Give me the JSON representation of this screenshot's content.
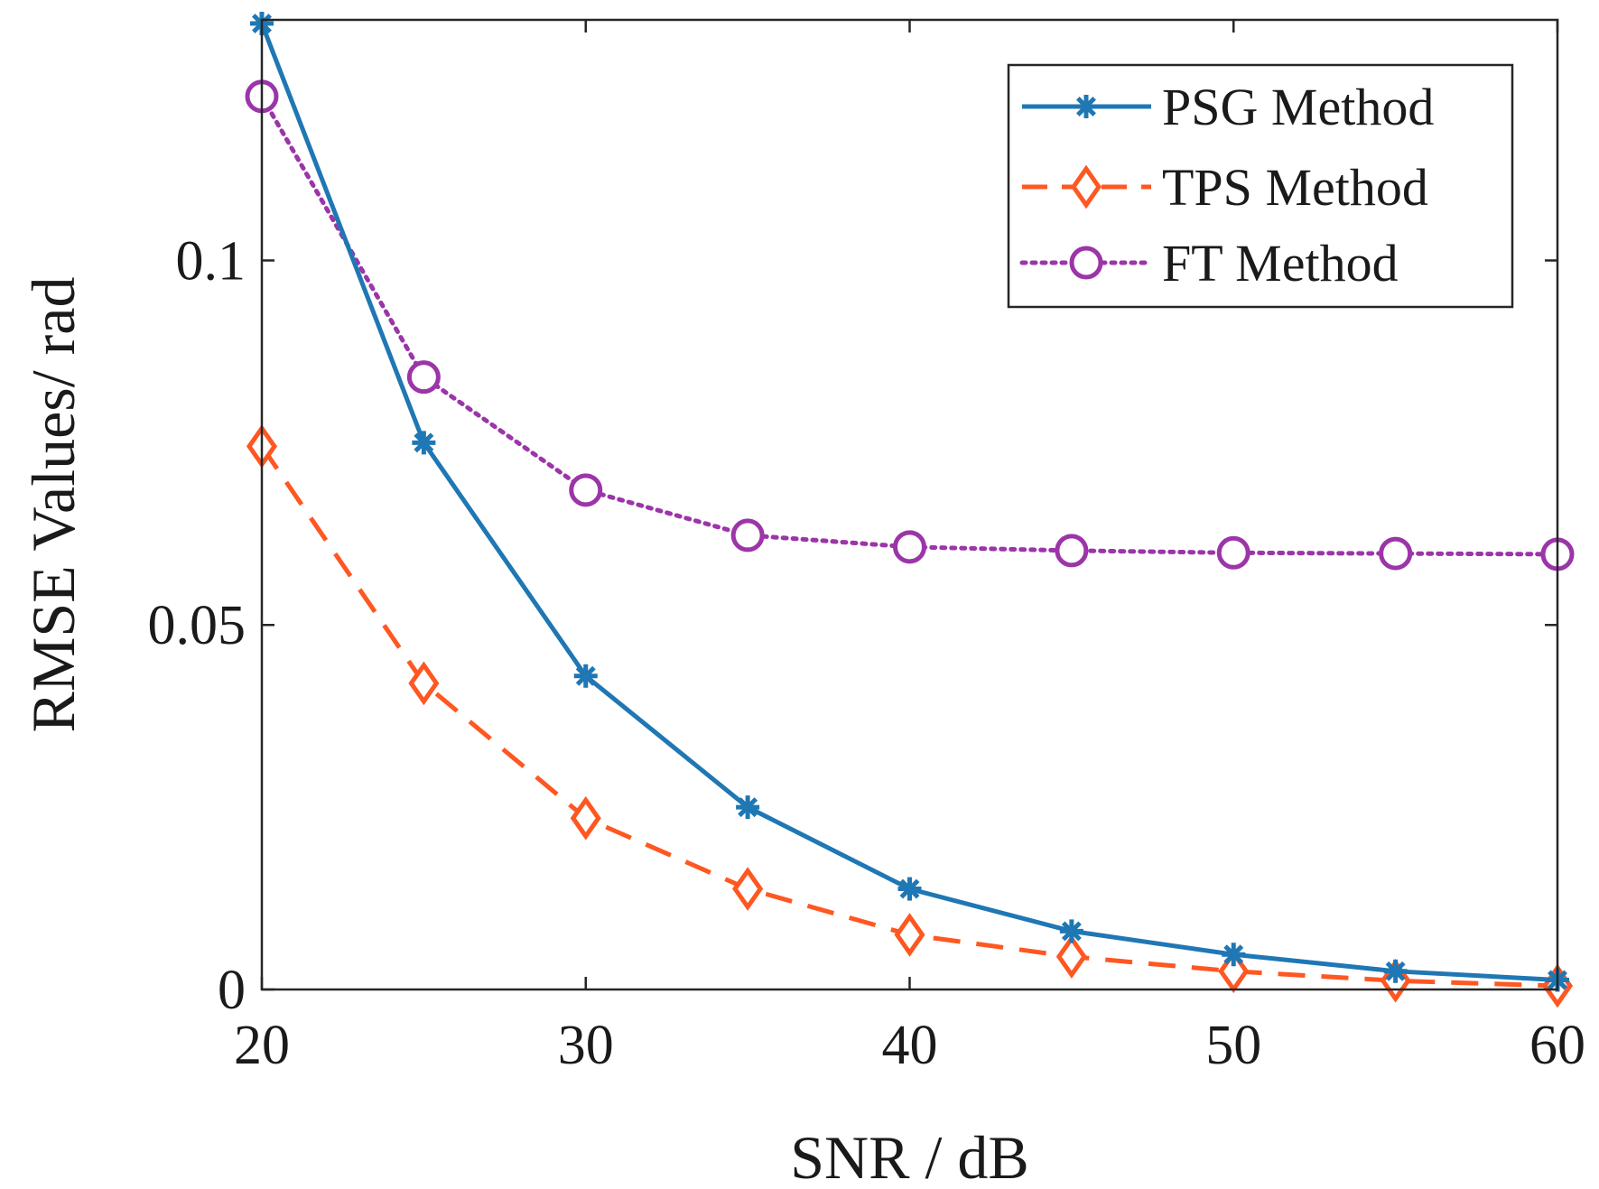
{
  "chart_data": {
    "type": "line",
    "title": "",
    "xlabel": "SNR / dB",
    "ylabel": "RMSE Values/ rad",
    "xlim": [
      20,
      60
    ],
    "ylim": [
      0,
      0.133
    ],
    "x_ticks": [
      20,
      30,
      40,
      50,
      60
    ],
    "y_ticks": [
      0,
      0.05,
      0.1
    ],
    "x_tick_labels": [
      "20",
      "30",
      "40",
      "50",
      "60"
    ],
    "y_tick_labels": [
      "0",
      "0.05",
      "0.1"
    ],
    "legend_position": "top-right",
    "x": [
      20,
      25,
      30,
      35,
      40,
      45,
      50,
      55,
      60
    ],
    "series": [
      {
        "name": "PSG Method",
        "color": "#1f77b4",
        "line_style": "solid",
        "marker": "asterisk",
        "values": [
          0.1325,
          0.075,
          0.043,
          0.025,
          0.0138,
          0.008,
          0.0048,
          0.0025,
          0.0013
        ]
      },
      {
        "name": "TPS Method",
        "color": "#ff5722",
        "line_style": "dashed",
        "marker": "diamond",
        "values": [
          0.0745,
          0.042,
          0.0235,
          0.0138,
          0.0075,
          0.0045,
          0.0025,
          0.0012,
          0.0005
        ]
      },
      {
        "name": "FT Method",
        "color": "#9b35a8",
        "line_style": "dotted",
        "marker": "circle",
        "values": [
          0.1225,
          0.084,
          0.0685,
          0.0623,
          0.0607,
          0.0602,
          0.0599,
          0.0598,
          0.0597
        ]
      }
    ]
  }
}
